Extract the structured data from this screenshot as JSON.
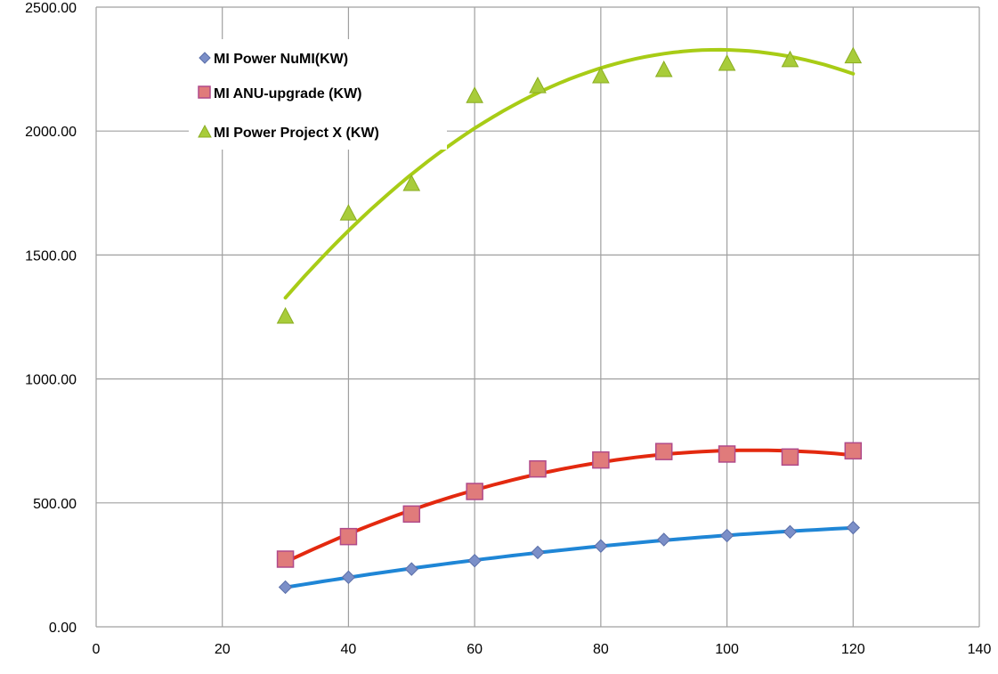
{
  "chart_data": {
    "type": "scatter",
    "title": "",
    "xlabel": "",
    "ylabel": "",
    "xlim": [
      0,
      140
    ],
    "ylim": [
      0,
      2500
    ],
    "x_ticks": [
      0,
      20,
      40,
      60,
      80,
      100,
      120,
      140
    ],
    "y_ticks": [
      0,
      500,
      1000,
      1500,
      2000,
      2500
    ],
    "x_tick_labels": [
      "0",
      "20",
      "40",
      "60",
      "80",
      "100",
      "120",
      "140"
    ],
    "y_tick_labels": [
      "0.00",
      "500.00",
      "1000.00",
      "1500.00",
      "2000.00",
      "2500.00"
    ],
    "grid": true,
    "legend_position": "top-left",
    "x": [
      30,
      40,
      50,
      60,
      70,
      80,
      90,
      100,
      110,
      120
    ],
    "series": [
      {
        "name": "MI Power NuMI(KW)",
        "marker": "diamond",
        "marker_color": "#7b8fc8",
        "trendline_color": "#1f86d6",
        "values": [
          160,
          200,
          233,
          267,
          300,
          326,
          352,
          368,
          383,
          400
        ]
      },
      {
        "name": "MI  ANU-upgrade (KW)",
        "marker": "square",
        "marker_color": "#e07b7b",
        "trendline_color": "#e3290f",
        "values": [
          273,
          364,
          455,
          546,
          637,
          673,
          707,
          697,
          685,
          710
        ]
      },
      {
        "name": "MI Power Project X (KW)",
        "marker": "triangle",
        "marker_color": "#a8cc3a",
        "trendline_color": "#a8cc16",
        "values": [
          1250,
          1666,
          1785,
          2140,
          2180,
          2220,
          2245,
          2270,
          2285,
          2300
        ]
      }
    ]
  }
}
